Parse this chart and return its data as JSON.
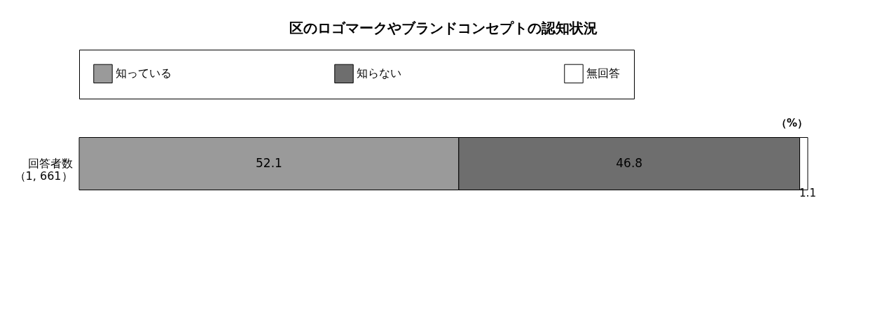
{
  "chart_data": {
    "type": "bar",
    "orientation": "horizontal",
    "stacked": true,
    "title": "区のロゴマークやブランドコンセプトの認知状況",
    "categories": [
      "回答者数（1, 661）"
    ],
    "series": [
      {
        "name": "知っている",
        "color": "#9a9a9a",
        "values": [
          52.1
        ]
      },
      {
        "name": "知らない",
        "color": "#6e6e6e",
        "values": [
          46.8
        ]
      },
      {
        "name": "無回答",
        "color": "#ffffff",
        "values": [
          1.1
        ]
      }
    ],
    "xlim": [
      0,
      100
    ],
    "tick_labels": "y",
    "data_labels": true,
    "legend": "top",
    "grid": false,
    "annotations": [
      "（%）"
    ]
  }
}
